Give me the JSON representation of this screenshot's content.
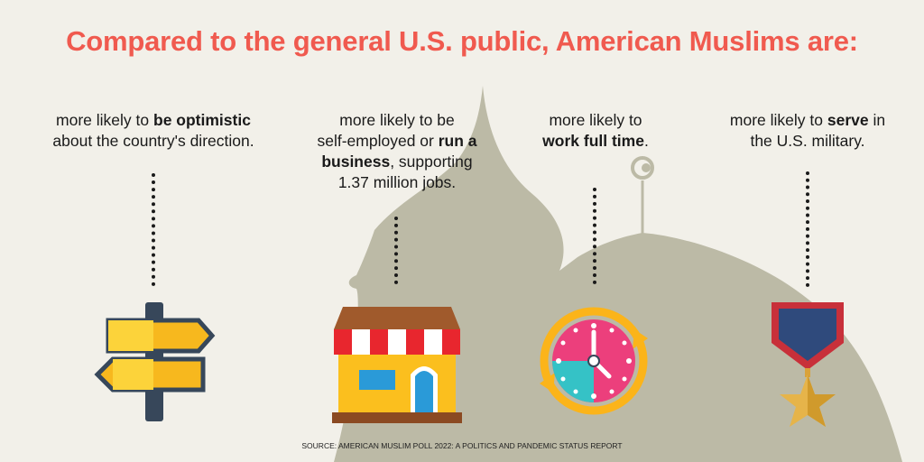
{
  "title": "Compared to the general U.S. public, American Muslims are:",
  "stats": [
    {
      "pre": "more likely to ",
      "bold": "be optimistic",
      "post": "",
      "line2": "about the country's direction.",
      "icon": "signpost-icon"
    },
    {
      "line1": "more likely to be",
      "pre": "self-employed or ",
      "bold": "run a",
      "bold2": "business",
      "post": ", supporting",
      "line4": "1.37 million jobs.",
      "icon": "storefront-icon"
    },
    {
      "line1": "more likely to",
      "bold": "work full time",
      "post": ".",
      "icon": "clock-icon"
    },
    {
      "pre": "more likely to ",
      "bold": "serve",
      "post": " in",
      "line2": "the U.S. military.",
      "icon": "medal-icon"
    }
  ],
  "source": "SOURCE: AMERICAN MUSLIM POLL 2022: A POLITICS AND PANDEMIC STATUS REPORT",
  "colors": {
    "title": "#f05a4f",
    "background": "#f2f0e9",
    "mosque": "#bcbaa6"
  }
}
